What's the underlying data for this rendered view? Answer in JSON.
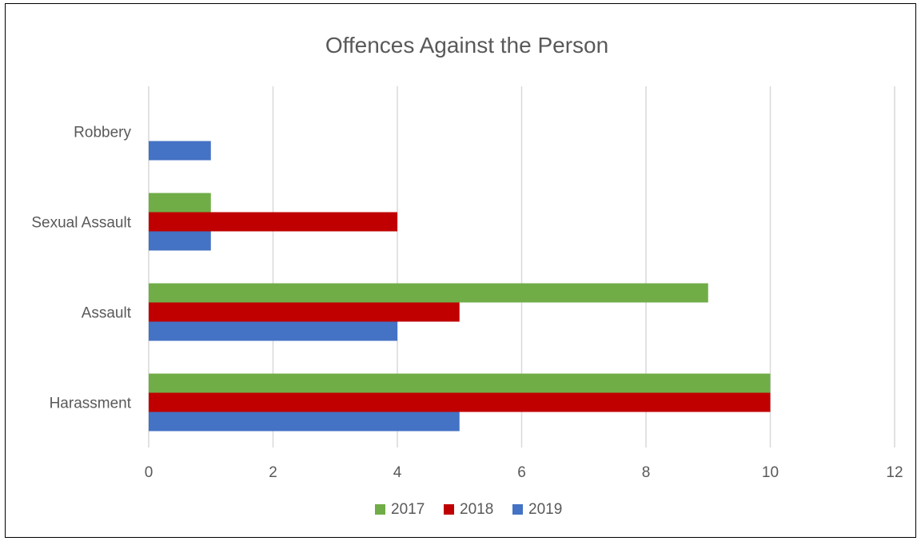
{
  "chart_data": {
    "type": "bar",
    "orientation": "horizontal",
    "title": "Offences Against the Person",
    "categories": [
      "Robbery",
      "Sexual Assault",
      "Assault",
      "Harassment"
    ],
    "series": [
      {
        "name": "2017",
        "color": "#70ad47",
        "values": [
          0,
          1,
          9,
          10
        ]
      },
      {
        "name": "2018",
        "color": "#c00000",
        "values": [
          0,
          4,
          5,
          10
        ]
      },
      {
        "name": "2019",
        "color": "#4472c4",
        "values": [
          1,
          1,
          4,
          5
        ]
      }
    ],
    "xlim": [
      0,
      12
    ],
    "xticks": [
      0,
      2,
      4,
      6,
      8,
      10,
      12
    ],
    "xlabel": "",
    "ylabel": "",
    "grid": true,
    "legend_position": "bottom"
  }
}
